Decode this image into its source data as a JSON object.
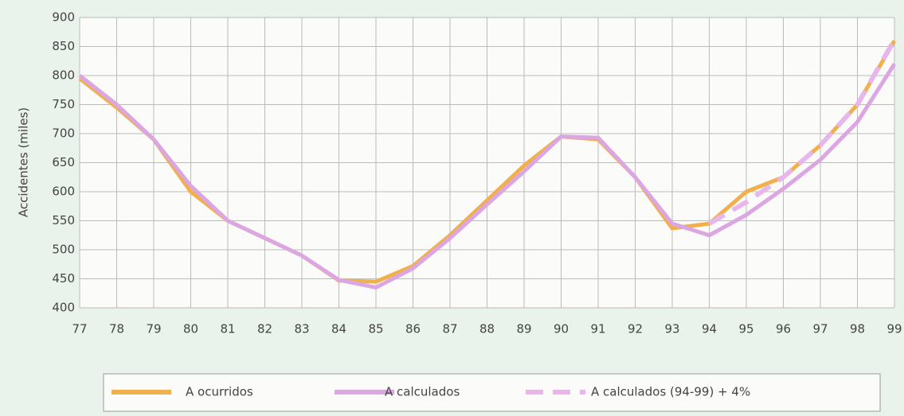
{
  "chart_data": {
    "type": "line",
    "y_label": "Accidentes (miles)",
    "categories": [
      "77",
      "78",
      "79",
      "80",
      "81",
      "82",
      "83",
      "84",
      "85",
      "86",
      "87",
      "88",
      "89",
      "90",
      "91",
      "92",
      "93",
      "94",
      "95",
      "96",
      "97",
      "98",
      "99"
    ],
    "series": [
      {
        "name": "A ocurridos",
        "color": "#f0b04c",
        "dashed": false,
        "values": [
          795,
          745,
          690,
          600,
          550,
          520,
          490,
          447,
          445,
          472,
          525,
          585,
          645,
          695,
          690,
          625,
          537,
          545,
          600,
          625,
          680,
          750,
          860
        ]
      },
      {
        "name": "A calculados",
        "color": "#dca6e2",
        "dashed": false,
        "values": [
          800,
          750,
          690,
          610,
          550,
          520,
          490,
          448,
          435,
          468,
          520,
          578,
          635,
          695,
          693,
          625,
          545,
          525,
          560,
          605,
          655,
          720,
          820
        ]
      },
      {
        "name": "A calculados (94-99) + 4%",
        "color": "#e7b7ec",
        "dashed": true,
        "values": [
          null,
          null,
          null,
          null,
          null,
          null,
          null,
          null,
          null,
          null,
          null,
          null,
          null,
          null,
          null,
          null,
          null,
          545,
          582,
          625,
          680,
          750,
          862
        ]
      }
    ],
    "ylim": [
      400,
      900
    ],
    "yticks": [
      400,
      450,
      500,
      550,
      600,
      650,
      700,
      750,
      800,
      850,
      900
    ],
    "grid": true
  }
}
